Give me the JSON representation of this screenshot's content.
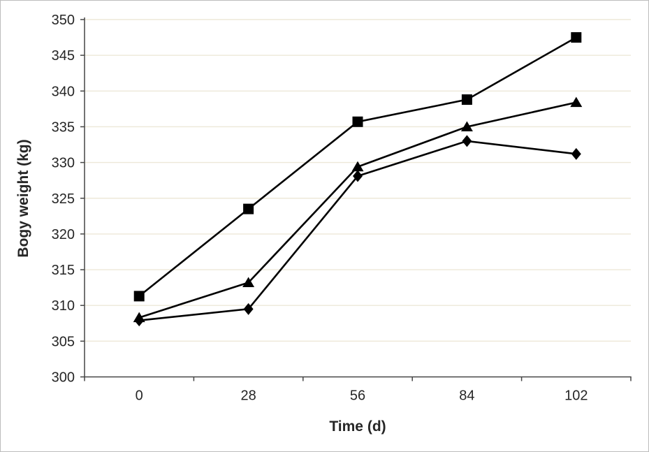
{
  "figure": {
    "background": "#ffffff",
    "border_color": "#bdbdbd"
  },
  "chart_data": {
    "type": "line",
    "title": "",
    "xlabel": "Time (d)",
    "ylabel": "Bogy weight (kg)",
    "categories": [
      "0",
      "28",
      "56",
      "84",
      "102"
    ],
    "series": [
      {
        "name": "square-series",
        "marker": "square",
        "values": [
          311.3,
          323.5,
          335.7,
          338.8,
          347.5
        ]
      },
      {
        "name": "triangle-series",
        "marker": "triangle",
        "values": [
          308.3,
          313.2,
          329.4,
          335.0,
          338.4
        ]
      },
      {
        "name": "diamond-series",
        "marker": "diamond",
        "values": [
          307.9,
          309.5,
          328.1,
          333.0,
          331.2
        ]
      }
    ],
    "ylim": [
      300,
      350
    ],
    "ytick_step": 5,
    "yticks": [
      300,
      305,
      310,
      315,
      320,
      325,
      330,
      335,
      340,
      345,
      350
    ],
    "grid": "horizontal",
    "legend": "none",
    "colors": {
      "series": "#000000",
      "gridline": "#ede8d8",
      "axis": "#454545",
      "label": "#262626"
    }
  }
}
